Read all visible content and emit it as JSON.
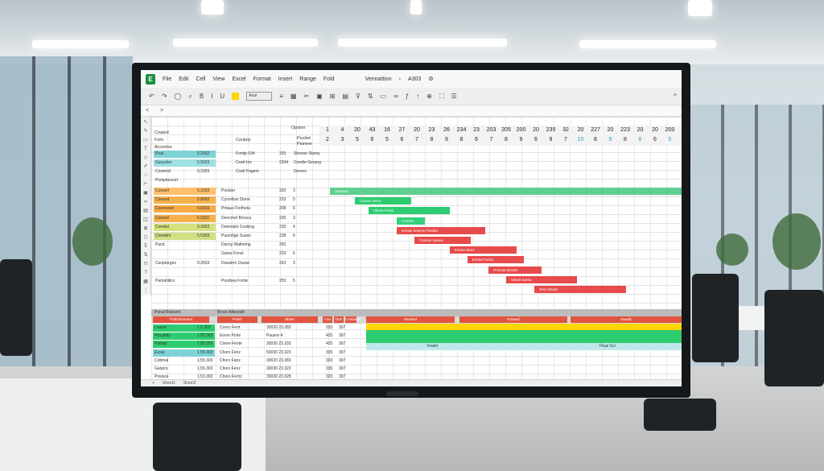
{
  "window": {
    "app_logo": "E",
    "menu": [
      "File",
      "Edit",
      "Cell",
      "View",
      "Excel",
      "Format",
      "Insert",
      "Range",
      "Fold"
    ],
    "title_label": "Vennattion",
    "doc_name": "A303"
  },
  "toolbar": {
    "font_name": "Arial",
    "icons": [
      "undo-icon",
      "redo-icon",
      "zoom-icon",
      "search-icon",
      "bold-icon",
      "italic-icon",
      "underline-icon",
      "text-color-icon",
      "font-select",
      "align-icon",
      "border-icon",
      "cut-icon",
      "image-icon",
      "grid-icon",
      "chart-icon",
      "filter-icon",
      "sort-icon",
      "comment-icon",
      "link-icon",
      "function-icon",
      "settings-icon",
      "share-icon",
      "fullscreen-icon",
      "menu-icon"
    ]
  },
  "formula": {
    "cell_ref": "<",
    "value": ">"
  },
  "header_block": {
    "col_a": [
      "Coated",
      "Fom",
      "Accentor"
    ],
    "col_b": "Coulpty",
    "col_c": "Opsion",
    "col_d": "Pocket Pioneer"
  },
  "timeline": {
    "top_row": [
      "1",
      "4",
      "20",
      "43",
      "16",
      "27",
      "20",
      "23",
      "26",
      "234",
      "23",
      "203",
      "205",
      "200",
      "20",
      "235",
      "32",
      "20",
      "227",
      "20",
      "223",
      "20",
      "20",
      "200"
    ],
    "bottom_row": [
      "2",
      "3",
      "5",
      "6",
      "5",
      "6",
      "7",
      "8",
      "9",
      "8",
      "6",
      "7",
      "8",
      "9",
      "6",
      "9",
      "7",
      "10",
      "8",
      "9",
      "8",
      "6",
      "6",
      "5"
    ]
  },
  "top_rows": [
    {
      "tag": "Peal",
      "val": "5.2502",
      "name": "Fontip 534",
      "code": "333",
      "desc": "Strosse Starny",
      "color": "#7fd3d6"
    },
    {
      "tag": "Garyolon",
      "val": "5.5623",
      "name": "Coetl Ins",
      "code": "2334",
      "desc": "Condie Gerang",
      "color": "#9fe0e2"
    },
    {
      "tag": "Cootend",
      "val": "0.3303",
      "name": "Coeit Fagere",
      "code": "",
      "desc": "Dersos",
      "color": ""
    },
    {
      "tag": "Pomptoscurt",
      "val": "",
      "name": "",
      "code": "",
      "desc": "",
      "color": ""
    }
  ],
  "task_rows": [
    {
      "tag": "Conseit",
      "val": "5.3303",
      "name": "Pooster",
      "code": "333",
      "num": "3",
      "color": "#ffc06b"
    },
    {
      "tag": "Coosed",
      "val": "5.8062",
      "name": "Cyrovibar Stone",
      "code": "233",
      "num": "5",
      "color": "#f6b14d"
    },
    {
      "tag": "Coomonel",
      "val": "0.5503",
      "name": "Prbaus Fortheta",
      "code": "208",
      "num": "6",
      "color": "#f9ac44"
    },
    {
      "tag": "Conseil",
      "val": "5.0331",
      "name": "Dencrnet Borsca",
      "code": "226",
      "num": "3",
      "color": "#f5b24c"
    },
    {
      "tag": "Comtlal",
      "val": "0.3003",
      "name": "Deeoralio Cosking",
      "code": "235",
      "num": "4",
      "color": "#d5e27c"
    },
    {
      "tag": "Comsilnl",
      "val": "5.5303",
      "name": "Puorotige Suses",
      "code": "238",
      "num": "6",
      "color": "#cfe083"
    },
    {
      "tag": "Parst",
      "val": "",
      "name": "Dacoy Watheing",
      "code": "250",
      "num": "",
      "color": ""
    },
    {
      "tag": "",
      "val": "",
      "name": "Game Fonel",
      "code": "233",
      "num": "6",
      "color": ""
    },
    {
      "tag": "Cenptorges",
      "val": "0.3503",
      "name": "Doeatrm Ousse",
      "code": "323",
      "num": "3",
      "color": ""
    },
    {
      "tag": "",
      "val": "",
      "name": "",
      "code": "",
      "num": "",
      "color": ""
    },
    {
      "tag": "Pamahilics",
      "val": "",
      "name": "Pourbea Fonte",
      "code": "253",
      "num": "5",
      "color": ""
    }
  ],
  "gantt_bars": [
    {
      "label": "Onnaion",
      "start": 0.0,
      "end": 1.0,
      "color": "#5fcf91"
    },
    {
      "label": "Conver  Onno",
      "start": 0.07,
      "end": 0.23,
      "color": "#2ecc71"
    },
    {
      "label": "Stiens  Ponis",
      "start": 0.11,
      "end": 0.34,
      "color": "#2ecc71"
    },
    {
      "label": "Conson",
      "start": 0.19,
      "end": 0.27,
      "color": "#33d17a"
    },
    {
      "label": "Ereaw  Sowren  Pasdra",
      "start": 0.19,
      "end": 0.44,
      "color": "#e84b4b"
    },
    {
      "label": "Orarum  Sauea",
      "start": 0.24,
      "end": 0.4,
      "color": "#e84b4b"
    },
    {
      "label": "Pomer  Benz",
      "start": 0.34,
      "end": 0.53,
      "color": "#e84b4b"
    },
    {
      "label": "Eonne  Furrst",
      "start": 0.39,
      "end": 0.55,
      "color": "#e84b4b"
    },
    {
      "label": "Prmoae  Brnste",
      "start": 0.45,
      "end": 0.6,
      "color": "#e84b4b"
    },
    {
      "label": "Obuet  Sarea",
      "start": 0.5,
      "end": 0.7,
      "color": "#e84b4b"
    },
    {
      "label": "Tenz  Denar",
      "start": 0.58,
      "end": 0.84,
      "color": "#e84b4b"
    }
  ],
  "bottom_table": {
    "title_left": "Ponal Blatoent",
    "title_mid": "Broce Attesrath",
    "sub": [
      "Pottonmasted",
      "Pottor",
      "Blatet",
      "Fas",
      "Orm",
      "Cominnot",
      "Veraelnt",
      "Pasaed",
      "Nuaott"
    ],
    "rows": [
      {
        "tag": "Loaser",
        "val": "1.5.303",
        "name": "Conro Fent",
        "date": "30020 23.383",
        "a": "333",
        "b": "307",
        "color": "#2ecc71"
      },
      {
        "tag": "Flocantly",
        "val": "1.55.303",
        "name": "Eovre Porle",
        "date": "Pauero 4",
        "a": "425",
        "b": "307",
        "color": "#2ecc71"
      },
      {
        "tag": "Pottopl",
        "val": "1.55.303",
        "name": "Conre Fente",
        "date": "30030 23.333",
        "a": "425",
        "b": "307",
        "color": "#2ecc71"
      },
      {
        "tag": "Exoal",
        "val": "1.55.303",
        "name": "Chors Fenz",
        "date": "50030 23.323",
        "a": "335",
        "b": "307",
        "color": "#7fd3d6"
      },
      {
        "tag": "Cottmal",
        "val": "1.55.303",
        "name": "Chors Fanz",
        "date": "30020 23.383",
        "a": "333",
        "b": "307",
        "color": ""
      },
      {
        "tag": "Garjers",
        "val": "1.55.303",
        "name": "Chors Fenz",
        "date": "30030 23.323",
        "a": "335",
        "b": "307",
        "color": ""
      },
      {
        "tag": "Powsze",
        "val": "1.53.303",
        "name": "Chore Fernz",
        "date": "30030 23.328",
        "a": "333",
        "b": "307",
        "color": ""
      },
      {
        "tag": "Fosdeta",
        "val": "1.55.303",
        "name": "Chore Penz",
        "date": "50030 23.828",
        "a": "333",
        "b": "307",
        "color": ""
      }
    ],
    "band_labels": [
      "Vnalet",
      "Fbue Sci"
    ]
  },
  "status": [
    "+",
    "Sheet1",
    "Sheet2"
  ],
  "colors": {
    "green": "#2ecc71",
    "red": "#e84b4b",
    "yellow": "#ffd500",
    "teal": "#7fd3d6",
    "orange": "#f6b14d"
  }
}
